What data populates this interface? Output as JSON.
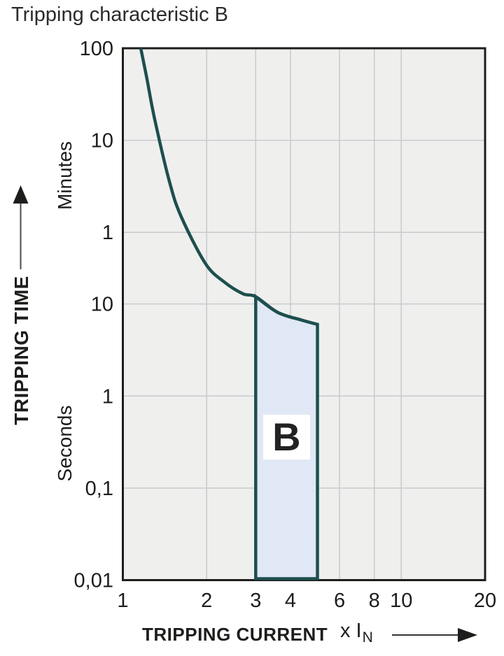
{
  "chart_data": {
    "type": "line",
    "title": "Tripping characteristic B",
    "x_axis": {
      "title": "TRIPPING CURRENT",
      "multiplier_label": "x I",
      "multiplier_sub": "N",
      "scale": "log",
      "range": [
        1,
        20
      ],
      "ticks": [
        1,
        2,
        3,
        4,
        6,
        8,
        10,
        20
      ],
      "gridlines_at": [
        2,
        3,
        4,
        6,
        8,
        10
      ]
    },
    "y_axis": {
      "title": "TRIPPING TIME",
      "scale": "log",
      "range_seconds": [
        0.01,
        6000
      ],
      "unit_labels": [
        "Minutes",
        "Seconds"
      ],
      "ticks": [
        {
          "label": "100",
          "seconds": 6000,
          "unit": "minutes"
        },
        {
          "label": "10",
          "seconds": 600,
          "unit": "minutes"
        },
        {
          "label": "1",
          "seconds": 60,
          "unit": "minutes"
        },
        {
          "label": "10",
          "seconds": 10,
          "unit": "seconds"
        },
        {
          "label": "1",
          "seconds": 1,
          "unit": "seconds"
        },
        {
          "label": "0,1",
          "seconds": 0.1,
          "unit": "seconds"
        },
        {
          "label": "0,01",
          "seconds": 0.01,
          "unit": "seconds"
        }
      ]
    },
    "series": [
      {
        "name": "tripping-curve",
        "color": "#1d4f4e",
        "points_x_in_seconds": [
          [
            1.16,
            6000
          ],
          [
            1.22,
            2800
          ],
          [
            1.3,
            1030
          ],
          [
            1.47,
            213
          ],
          [
            1.62,
            89
          ],
          [
            1.98,
            27.5
          ],
          [
            2.31,
            17.4
          ],
          [
            2.7,
            12.9
          ],
          [
            3.0,
            12.0
          ],
          [
            3.6,
            8.1
          ],
          [
            4.37,
            6.7
          ],
          [
            5.0,
            6.0
          ]
        ]
      }
    ],
    "region": {
      "label": "B",
      "x_start": 3,
      "x_end": 5,
      "bottom_seconds": 0.01,
      "fill": "#e1e8f5",
      "stroke": "#1d4f4e"
    },
    "colors": {
      "plot_bg": "#efefee",
      "grid": "#c9cacd",
      "border": "#1d1d1b",
      "text": "#1d1d1b",
      "curve": "#1d4f4e"
    }
  }
}
